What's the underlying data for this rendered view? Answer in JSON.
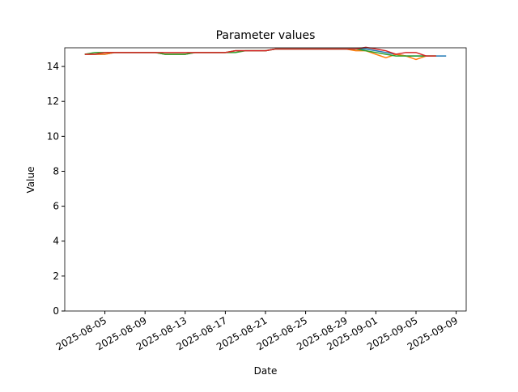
{
  "chart_data": {
    "type": "line",
    "title": "Parameter values",
    "x_label": "Date",
    "y_label": "Value",
    "x": [
      "2025-08-03",
      "2025-08-04",
      "2025-08-05",
      "2025-08-06",
      "2025-08-07",
      "2025-08-08",
      "2025-08-09",
      "2025-08-10",
      "2025-08-11",
      "2025-08-12",
      "2025-08-13",
      "2025-08-14",
      "2025-08-15",
      "2025-08-16",
      "2025-08-17",
      "2025-08-18",
      "2025-08-19",
      "2025-08-20",
      "2025-08-21",
      "2025-08-22",
      "2025-08-23",
      "2025-08-24",
      "2025-08-25",
      "2025-08-26",
      "2025-08-27",
      "2025-08-28",
      "2025-08-29",
      "2025-08-30",
      "2025-08-31",
      "2025-09-01",
      "2025-09-02",
      "2025-09-03",
      "2025-09-04",
      "2025-09-05",
      "2025-09-06",
      "2025-09-07",
      "2025-09-08"
    ],
    "series": [
      {
        "color": "#1f77b4",
        "values": [
          14.7,
          14.7,
          14.7,
          14.8,
          14.8,
          14.8,
          14.8,
          14.8,
          14.7,
          14.7,
          14.7,
          14.8,
          14.8,
          14.8,
          14.8,
          14.9,
          14.9,
          14.9,
          14.9,
          15.0,
          15.0,
          15.0,
          15.0,
          15.0,
          15.0,
          15.0,
          15.0,
          15.0,
          15.0,
          14.9,
          14.8,
          14.7,
          14.6,
          14.6,
          14.6,
          14.6,
          14.6
        ]
      },
      {
        "color": "#ff7f0e",
        "values": [
          14.7,
          14.7,
          14.7,
          14.8,
          14.8,
          14.8,
          14.8,
          14.8,
          14.7,
          14.7,
          14.7,
          14.8,
          14.8,
          14.8,
          14.8,
          14.9,
          14.9,
          14.9,
          14.9,
          15.0,
          15.0,
          15.0,
          15.0,
          15.0,
          15.0,
          15.0,
          15.0,
          14.9,
          14.9,
          14.7,
          14.5,
          14.7,
          14.6,
          14.4,
          14.6,
          14.6,
          null
        ]
      },
      {
        "color": "#2ca02c",
        "values": [
          14.7,
          14.8,
          14.8,
          14.8,
          14.8,
          14.8,
          14.8,
          14.8,
          14.7,
          14.7,
          14.7,
          14.8,
          14.8,
          14.8,
          14.8,
          14.8,
          14.9,
          14.9,
          14.9,
          15.0,
          15.0,
          15.0,
          15.0,
          15.0,
          15.0,
          15.0,
          15.0,
          15.0,
          14.9,
          14.8,
          14.7,
          14.6,
          14.6,
          14.6,
          14.6,
          14.6,
          null
        ]
      },
      {
        "color": "#d62728",
        "values": [
          14.7,
          14.7,
          14.8,
          14.8,
          14.8,
          14.8,
          14.8,
          14.8,
          14.8,
          14.8,
          14.8,
          14.8,
          14.8,
          14.8,
          14.8,
          14.9,
          14.9,
          14.9,
          14.9,
          15.0,
          15.0,
          15.0,
          15.0,
          15.0,
          15.0,
          15.0,
          15.0,
          15.0,
          15.1,
          15.0,
          14.9,
          14.7,
          14.8,
          14.8,
          14.6,
          14.6,
          null
        ]
      }
    ],
    "xlim": [
      "2025-08-01",
      "2025-09-10"
    ],
    "xticks": [
      "2025-08-05",
      "2025-08-09",
      "2025-08-13",
      "2025-08-17",
      "2025-08-21",
      "2025-08-25",
      "2025-08-29",
      "2025-09-01",
      "2025-09-05",
      "2025-09-09"
    ],
    "ylim": [
      0,
      15.07
    ],
    "yticks": [
      0,
      2,
      4,
      6,
      8,
      10,
      12,
      14
    ],
    "grid": false
  }
}
